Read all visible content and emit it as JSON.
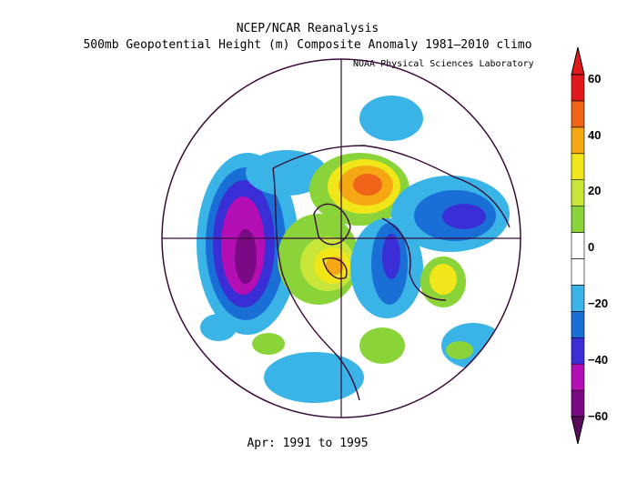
{
  "title_line1": "NCEP/NCAR Reanalysis",
  "title_line2": "500mb Geopotential Height (m) Composite Anomaly 1981–2010 climo",
  "lab": "NOAA Physical Sciences Laboratory",
  "caption": "Apr: 1991 to 1995",
  "colorbar": {
    "ticks": [
      "60",
      "40",
      "20",
      "0",
      "−20",
      "−40",
      "−60"
    ],
    "colors": [
      "#7a0a84",
      "#b40fb4",
      "#3a2fd6",
      "#1a6fd6",
      "#3ab4e6",
      "#ffffff",
      "#ffffff",
      "#8ad43a",
      "#c8e63a",
      "#f0e61a",
      "#f5a814",
      "#f0641a",
      "#e01a1a"
    ]
  }
}
